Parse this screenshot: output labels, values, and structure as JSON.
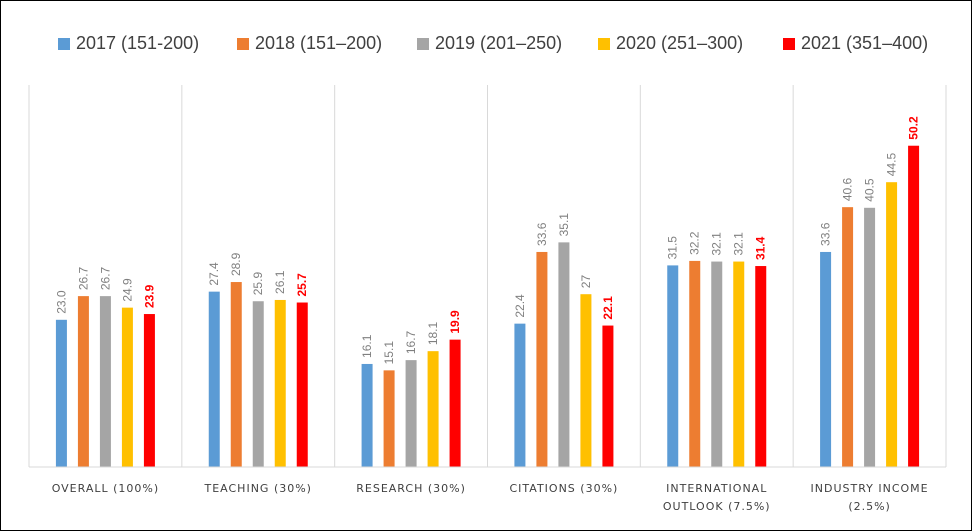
{
  "chart_data": {
    "type": "bar",
    "categories": [
      [
        "OVERALL (100%)"
      ],
      [
        "TEACHING (30%)"
      ],
      [
        "RESEARCH (30%)"
      ],
      [
        "CITATIONS (30%)"
      ],
      [
        "INTERNATIONAL",
        "OUTLOOK (7.5%)"
      ],
      [
        "INDUSTRY INCOME",
        "(2.5%)"
      ]
    ],
    "series": [
      {
        "name": "2017 (151-200)",
        "color": "#5b9bd5",
        "values": [
          23.0,
          27.4,
          16.1,
          22.4,
          31.5,
          33.6
        ],
        "labels": [
          "23.0",
          "27.4",
          "16.1",
          "22.4",
          "31.5",
          "33.6"
        ]
      },
      {
        "name": "2018 (151–200)",
        "color": "#ed7d31",
        "values": [
          26.7,
          28.9,
          15.1,
          33.6,
          32.2,
          40.6
        ],
        "labels": [
          "26.7",
          "28.9",
          "15.1",
          "33.6",
          "32.2",
          "40.6"
        ]
      },
      {
        "name": "2019 (201–250)",
        "color": "#a5a5a5",
        "values": [
          26.7,
          25.9,
          16.7,
          35.1,
          32.1,
          40.5
        ],
        "labels": [
          "26.7",
          "25.9",
          "16.7",
          "35.1",
          "32.1",
          "40.5"
        ]
      },
      {
        "name": "2020 (251–300)",
        "color": "#ffc000",
        "values": [
          24.9,
          26.1,
          18.1,
          27,
          32.1,
          44.5
        ],
        "labels": [
          "24.9",
          "26.1",
          "18.1",
          "27",
          "32.1",
          "44.5"
        ]
      },
      {
        "name": "2021 (351–400)",
        "color": "#ff0000",
        "values": [
          23.9,
          25.7,
          19.9,
          22.1,
          31.4,
          50.2
        ],
        "labels": [
          "23.9",
          "25.7",
          "19.9",
          "22.1",
          "31.4",
          "50.2"
        ],
        "highlight": true
      }
    ],
    "ylim": [
      0,
      60
    ],
    "grid": false,
    "category_separators": true,
    "legend": "top",
    "title": "",
    "xlabel": "",
    "ylabel": ""
  }
}
